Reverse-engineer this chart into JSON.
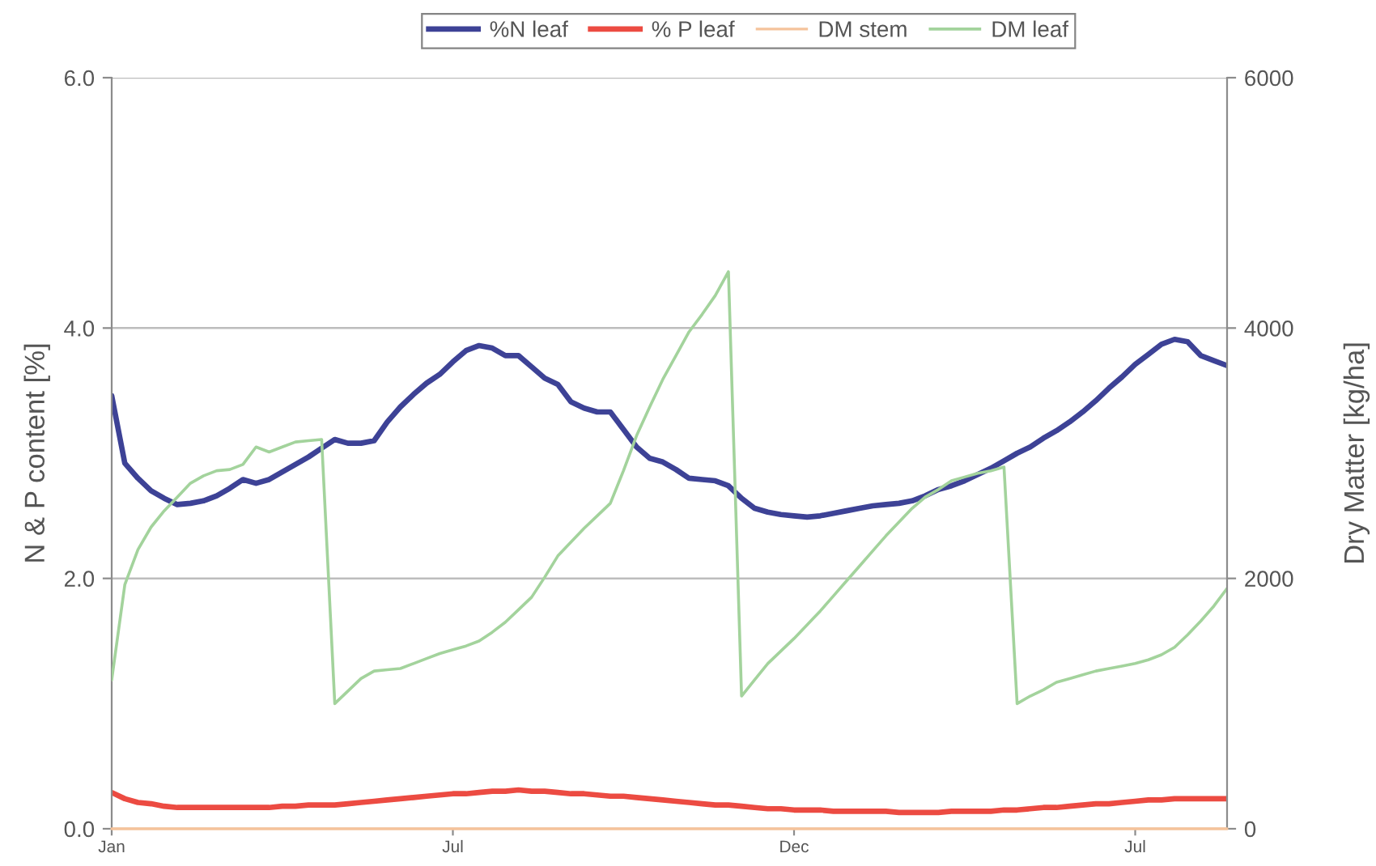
{
  "chart_data": {
    "type": "line",
    "ylabel": "N & P content [%]",
    "y2label": "Dry Matter [kg/ha]",
    "categories": [
      "Jan",
      null,
      null,
      null,
      null,
      null,
      null,
      null,
      null,
      null,
      null,
      null,
      null,
      null,
      null,
      null,
      null,
      null,
      null,
      null,
      null,
      null,
      null,
      null,
      null,
      null,
      "Jul",
      null,
      null,
      null,
      null,
      null,
      null,
      null,
      null,
      null,
      null,
      null,
      null,
      null,
      null,
      null,
      null,
      null,
      null,
      null,
      null,
      null,
      null,
      null,
      null,
      null,
      "Dec",
      null,
      null,
      null,
      null,
      null,
      null,
      null,
      null,
      null,
      null,
      null,
      null,
      null,
      null,
      null,
      null,
      null,
      null,
      null,
      null,
      null,
      null,
      null,
      null,
      null,
      "Jul",
      null,
      null,
      null,
      null,
      null,
      null,
      null
    ],
    "ylim": [
      0,
      6
    ],
    "yticks": [
      {
        "value": 0,
        "label": "0.0"
      },
      {
        "value": 2,
        "label": "2.0"
      },
      {
        "value": 4,
        "label": "4.0"
      },
      {
        "value": 6,
        "label": "6.0"
      }
    ],
    "y2lim": [
      0,
      6000
    ],
    "y2ticks": [
      0,
      2000,
      4000,
      6000
    ],
    "grid": "y",
    "legend": "top",
    "series": [
      {
        "name": "%N leaf",
        "color": "#3d4296",
        "values": [
          3.46,
          2.92,
          2.8,
          2.7,
          2.64,
          2.59,
          2.6,
          2.62,
          2.66,
          2.72,
          2.79,
          2.76,
          2.79,
          2.85,
          2.91,
          2.97,
          3.04,
          3.11,
          3.08,
          3.08,
          3.1,
          3.25,
          3.37,
          3.47,
          3.56,
          3.63,
          3.73,
          3.82,
          3.86,
          3.84,
          3.78,
          3.78,
          3.69,
          3.6,
          3.55,
          3.41,
          3.36,
          3.33,
          3.33,
          3.19,
          3.05,
          2.96,
          2.93,
          2.87,
          2.8,
          2.79,
          2.78,
          2.74,
          2.64,
          2.56,
          2.53,
          2.51,
          2.5,
          2.49,
          2.5,
          2.52,
          2.54,
          2.56,
          2.58,
          2.59,
          2.6,
          2.62,
          2.66,
          2.71,
          2.74,
          2.78,
          2.83,
          2.88,
          2.94,
          3.0,
          3.05,
          3.12,
          3.18,
          3.25,
          3.33,
          3.42,
          3.52,
          3.61,
          3.71,
          3.79,
          3.87,
          3.91,
          3.89,
          3.78,
          3.74,
          3.7
        ]
      },
      {
        "name": "% P leaf",
        "color": "#ec4b42",
        "values": [
          0.29,
          0.24,
          0.21,
          0.2,
          0.18,
          0.17,
          0.17,
          0.17,
          0.17,
          0.17,
          0.17,
          0.17,
          0.17,
          0.18,
          0.18,
          0.19,
          0.19,
          0.19,
          0.2,
          0.21,
          0.22,
          0.23,
          0.24,
          0.25,
          0.26,
          0.27,
          0.28,
          0.28,
          0.29,
          0.3,
          0.3,
          0.31,
          0.3,
          0.3,
          0.29,
          0.28,
          0.28,
          0.27,
          0.26,
          0.26,
          0.25,
          0.24,
          0.23,
          0.22,
          0.21,
          0.2,
          0.19,
          0.19,
          0.18,
          0.17,
          0.16,
          0.16,
          0.15,
          0.15,
          0.15,
          0.14,
          0.14,
          0.14,
          0.14,
          0.14,
          0.13,
          0.13,
          0.13,
          0.13,
          0.14,
          0.14,
          0.14,
          0.14,
          0.15,
          0.15,
          0.16,
          0.17,
          0.17,
          0.18,
          0.19,
          0.2,
          0.2,
          0.21,
          0.22,
          0.23,
          0.23,
          0.24,
          0.24,
          0.24,
          0.24,
          0.24
        ]
      },
      {
        "name": "DM stem",
        "color": "#f5c39b",
        "axis": "y2",
        "values": [
          0,
          0,
          0,
          0,
          0,
          0,
          0,
          0,
          0,
          0,
          0,
          0,
          0,
          0,
          0,
          0,
          0,
          0,
          0,
          0,
          0,
          0,
          0,
          0,
          0,
          0,
          0,
          0,
          0,
          0,
          0,
          0,
          0,
          0,
          0,
          0,
          0,
          0,
          0,
          0,
          0,
          0,
          0,
          0,
          0,
          0,
          0,
          0,
          0,
          0,
          0,
          0,
          0,
          0,
          0,
          0,
          0,
          0,
          0,
          0,
          0,
          0,
          0,
          0,
          0,
          0,
          0,
          0,
          0,
          0,
          0,
          0,
          0,
          0,
          0,
          0,
          0,
          0,
          0,
          0,
          0,
          0,
          0,
          0,
          0,
          0
        ]
      },
      {
        "name": "DM leaf",
        "color": "#a3d39c",
        "axis": "y2",
        "values": [
          1190,
          1950,
          2230,
          2410,
          2540,
          2650,
          2760,
          2820,
          2860,
          2870,
          2910,
          3050,
          3010,
          3050,
          3090,
          3100,
          3110,
          1000,
          1100,
          1200,
          1260,
          1270,
          1280,
          1320,
          1360,
          1400,
          1430,
          1460,
          1500,
          1570,
          1650,
          1750,
          1850,
          2010,
          2180,
          2290,
          2400,
          2500,
          2600,
          2860,
          3140,
          3370,
          3590,
          3780,
          3970,
          4110,
          4260,
          4450,
          1060,
          1190,
          1320,
          1420,
          1520,
          1630,
          1740,
          1860,
          1980,
          2100,
          2220,
          2340,
          2450,
          2560,
          2650,
          2710,
          2780,
          2810,
          2840,
          2860,
          2890,
          1000,
          1060,
          1110,
          1170,
          1200,
          1230,
          1260,
          1280,
          1300,
          1320,
          1350,
          1390,
          1450,
          1550,
          1660,
          1780,
          1920
        ]
      }
    ]
  }
}
